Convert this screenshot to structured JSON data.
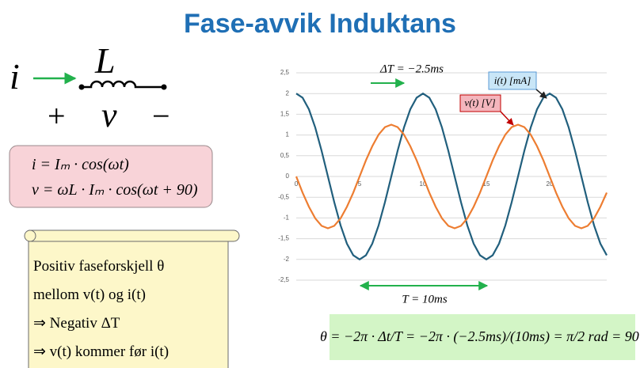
{
  "title": "Fase-avvik Induktans",
  "circuit": {
    "current": "i",
    "inductor": "L",
    "plus": "+",
    "voltage": "v",
    "minus": "−"
  },
  "formula_box": [
    "i = Iₘ · cos(ωt)",
    "v = ωL · Iₘ · cos(ωt + 90)"
  ],
  "note": [
    "Positiv faseforskjell θ",
    "mellom v(t) og i(t)",
    "⇒  Negativ ΔT",
    "⇒  v(t) kommer før i(t)"
  ],
  "equation": "θ = −2π · Δt/T = −2π · (−2.5ms)/(10ms) = π/2 rad = 90°",
  "chart_data": {
    "type": "line",
    "x": [
      0,
      0.5,
      1,
      1.5,
      2,
      2.5,
      3,
      3.5,
      4,
      4.5,
      5,
      5.5,
      6,
      6.5,
      7,
      7.5,
      8,
      8.5,
      9,
      9.5,
      10,
      10.5,
      11,
      11.5,
      12,
      12.5,
      13,
      13.5,
      14,
      14.5,
      15,
      15.5,
      16,
      16.5,
      17,
      17.5,
      18,
      18.5,
      19,
      19.5,
      20,
      20.5,
      21,
      21.5,
      22,
      22.5,
      23,
      23.5,
      24,
      24.5
    ],
    "series": [
      {
        "name": "i(t) [mA]",
        "color": "#215f7d",
        "values": [
          2,
          1.9,
          1.62,
          1.18,
          0.62,
          0,
          -0.62,
          -1.18,
          -1.62,
          -1.9,
          -2,
          -1.9,
          -1.62,
          -1.18,
          -0.62,
          0,
          0.62,
          1.18,
          1.62,
          1.9,
          2,
          1.9,
          1.62,
          1.18,
          0.62,
          0,
          -0.62,
          -1.18,
          -1.62,
          -1.9,
          -2,
          -1.9,
          -1.62,
          -1.18,
          -0.62,
          0,
          0.62,
          1.18,
          1.62,
          1.9,
          2,
          1.9,
          1.62,
          1.18,
          0.62,
          0,
          -0.62,
          -1.18,
          -1.62,
          -1.9
        ]
      },
      {
        "name": "v(t) [V]",
        "color": "#ed7d31",
        "values": [
          0,
          -0.39,
          -0.73,
          -1.01,
          -1.19,
          -1.25,
          -1.19,
          -1.01,
          -0.73,
          -0.39,
          0,
          0.39,
          0.73,
          1.01,
          1.19,
          1.25,
          1.19,
          1.01,
          0.73,
          0.39,
          0,
          -0.39,
          -0.73,
          -1.01,
          -1.19,
          -1.25,
          -1.19,
          -1.01,
          -0.73,
          -0.39,
          0,
          0.39,
          0.73,
          1.01,
          1.19,
          1.25,
          1.19,
          1.01,
          0.73,
          0.39,
          0,
          -0.39,
          -0.73,
          -1.01,
          -1.19,
          -1.25,
          -1.19,
          -1.01,
          -0.73,
          -0.39
        ]
      }
    ],
    "xlim": [
      0,
      24.5
    ],
    "xticks": [
      0,
      5,
      10,
      15,
      20
    ],
    "ylim": [
      -2.5,
      2.5
    ],
    "yticks": [
      {
        "value": 2.5,
        "label": "2,5"
      },
      2,
      {
        "value": 1.5,
        "label": "1,5"
      },
      1,
      {
        "value": 0.5,
        "label": "0,5"
      },
      0,
      {
        "value": -0.5,
        "label": "-0,5"
      },
      -1,
      {
        "value": -1.5,
        "label": "-1,5"
      },
      -2,
      {
        "value": -2.5,
        "label": "-2,5"
      }
    ],
    "grid": true,
    "annotations": [
      "ΔT = −2.5ms",
      "T = 10ms"
    ]
  }
}
